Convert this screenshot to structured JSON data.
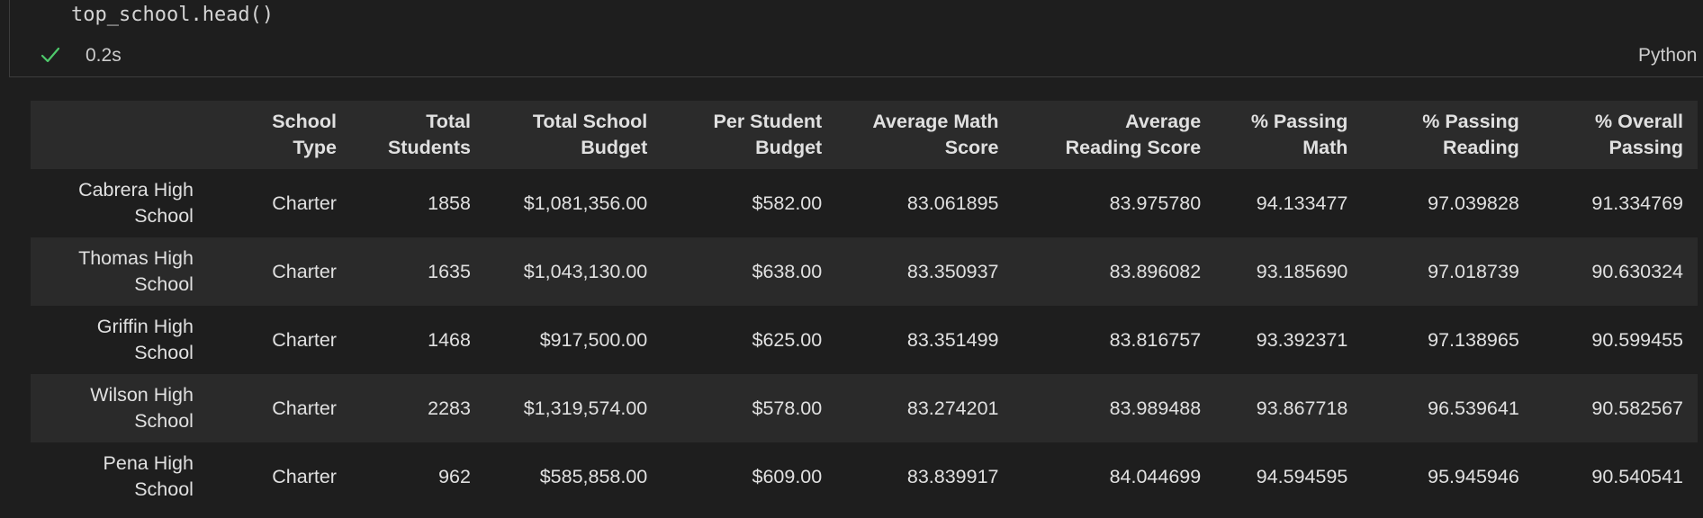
{
  "cell": {
    "code": "top_school.head()",
    "exec_time": "0.2s",
    "language": "Python"
  },
  "table": {
    "columns": [
      [
        "",
        ""
      ],
      [
        "School",
        "Type"
      ],
      [
        "Total",
        "Students"
      ],
      [
        "Total School",
        "Budget"
      ],
      [
        "Per Student",
        "Budget"
      ],
      [
        "Average Math",
        "Score"
      ],
      [
        "Average",
        "Reading Score"
      ],
      [
        "% Passing",
        "Math"
      ],
      [
        "% Passing",
        "Reading"
      ],
      [
        "% Overall",
        "Passing"
      ]
    ],
    "rows": [
      {
        "index": [
          "Cabrera High",
          "School"
        ],
        "cells": [
          "Charter",
          "1858",
          "$1,081,356.00",
          "$582.00",
          "83.061895",
          "83.975780",
          "94.133477",
          "97.039828",
          "91.334769"
        ]
      },
      {
        "index": [
          "Thomas High",
          "School"
        ],
        "cells": [
          "Charter",
          "1635",
          "$1,043,130.00",
          "$638.00",
          "83.350937",
          "83.896082",
          "93.185690",
          "97.018739",
          "90.630324"
        ]
      },
      {
        "index": [
          "Griffin High",
          "School"
        ],
        "cells": [
          "Charter",
          "1468",
          "$917,500.00",
          "$625.00",
          "83.351499",
          "83.816757",
          "93.392371",
          "97.138965",
          "90.599455"
        ]
      },
      {
        "index": [
          "Wilson High",
          "School"
        ],
        "cells": [
          "Charter",
          "2283",
          "$1,319,574.00",
          "$578.00",
          "83.274201",
          "83.989488",
          "93.867718",
          "96.539641",
          "90.582567"
        ]
      },
      {
        "index": [
          "Pena High",
          "School"
        ],
        "cells": [
          "Charter",
          "962",
          "$585,858.00",
          "$609.00",
          "83.839917",
          "84.044699",
          "94.594595",
          "95.945946",
          "90.540541"
        ]
      }
    ]
  },
  "colors": {
    "check": "#4ec96b",
    "background": "#1e1e1e",
    "header_bg": "#2b2b2b",
    "stripe_bg": "#2a2a2a"
  }
}
